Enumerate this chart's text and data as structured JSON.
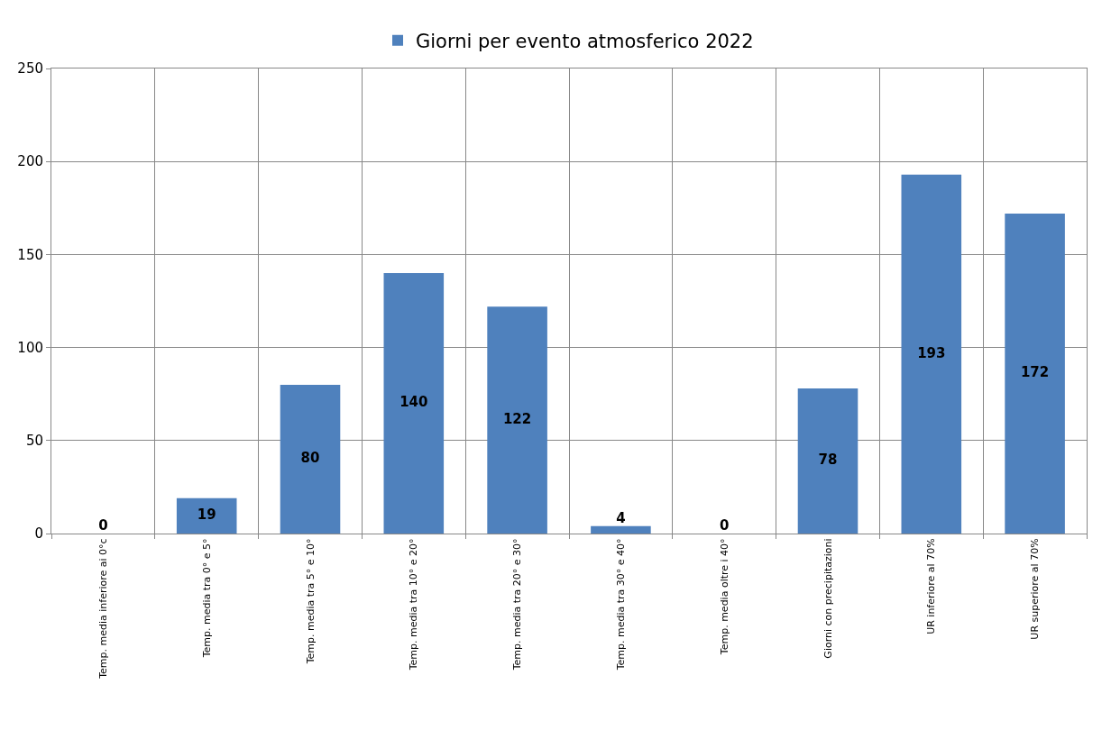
{
  "chart_data": {
    "type": "bar",
    "categories": [
      "Temp. media inferiore ai 0°c",
      "Temp. media tra 0° e 5°",
      "Temp. media tra 5° e 10°",
      "Temp. media tra 10° e 20°",
      "Temp. media tra 20° e 30°",
      "Temp. media tra 30° e 40°",
      "Temp. media oltre i 40°",
      "Giorni con precipitazioni",
      "UR inferiore al 70%",
      "UR superiore al 70%"
    ],
    "series": [
      {
        "name": "Giorni per evento atmosferico 2022",
        "color": "#4f81bd",
        "values": [
          0,
          19,
          80,
          140,
          122,
          4,
          0,
          78,
          193,
          172
        ]
      }
    ],
    "ylim": [
      0,
      250
    ],
    "yticks": [
      0,
      50,
      100,
      150,
      200,
      250
    ],
    "grid": true,
    "legend": "top",
    "data_labels": true
  }
}
